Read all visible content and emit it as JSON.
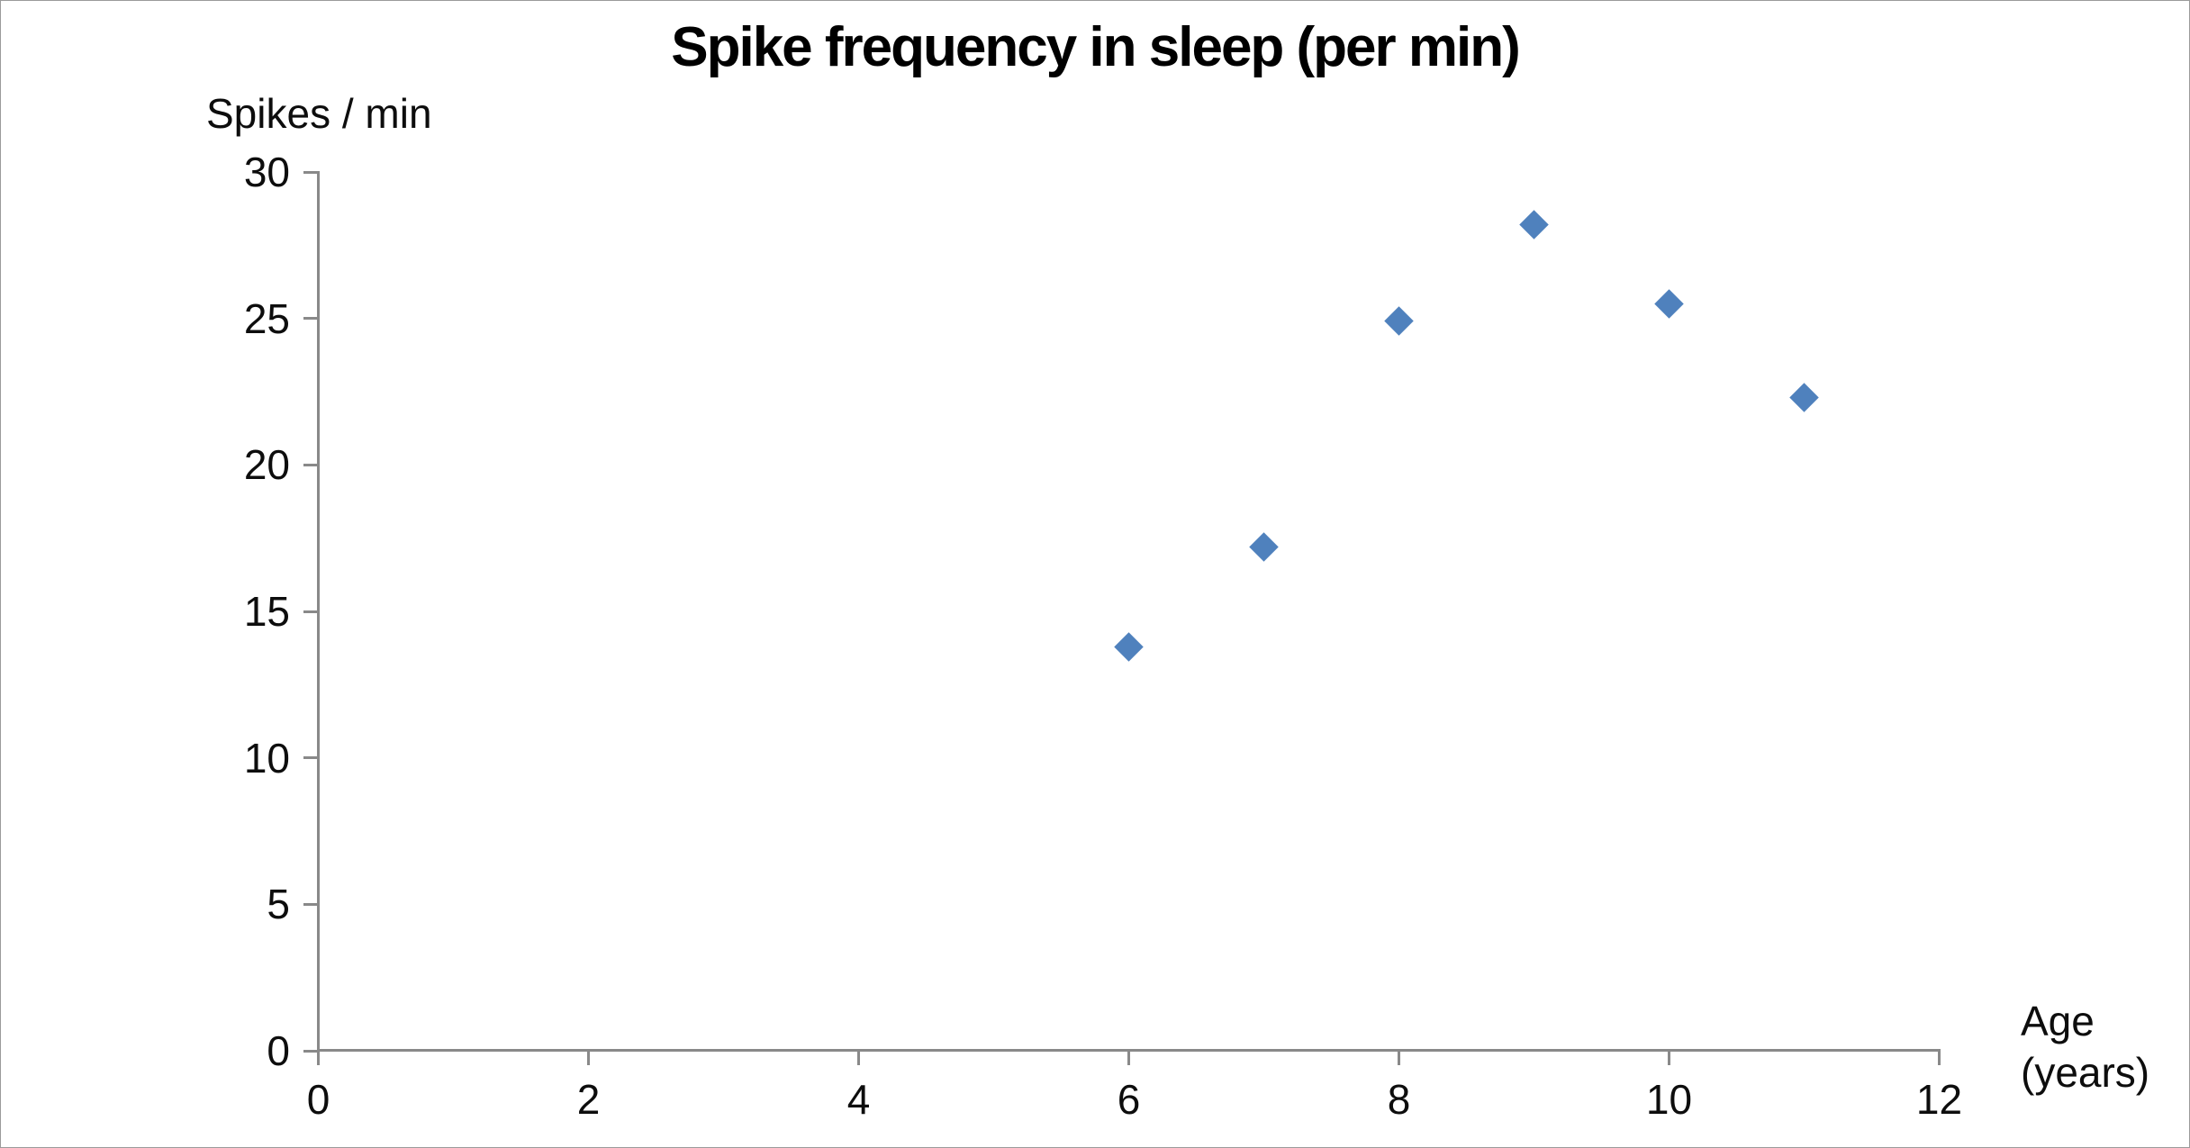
{
  "chart_data": {
    "type": "scatter",
    "title": "Spike frequency in sleep (per min)",
    "ylabel": "Spikes / min",
    "xlabel": "Age (years)",
    "xlabel_lines": [
      "Age",
      "(years)"
    ],
    "x": [
      6,
      7,
      8,
      9,
      10,
      11
    ],
    "y": [
      13.8,
      17.2,
      24.9,
      28.2,
      25.5,
      22.3
    ],
    "series_name": "Spike frequency",
    "xlim": [
      0,
      12
    ],
    "ylim": [
      0,
      30
    ],
    "xticks": [
      0,
      2,
      4,
      6,
      8,
      10,
      12
    ],
    "yticks": [
      0,
      5,
      10,
      15,
      20,
      25,
      30
    ],
    "grid": false,
    "legend": null,
    "marker": "diamond",
    "marker_color": "#4f81bd",
    "axis_color": "#898989",
    "text_color": "#000000",
    "background_color": "#ffffff"
  }
}
